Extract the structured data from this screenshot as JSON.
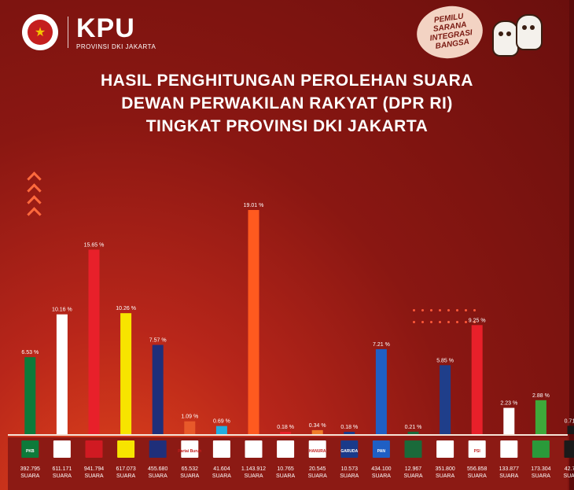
{
  "header": {
    "org": "KPU",
    "sub": "PROVINSI DKI JAKARTA",
    "seal_top": "KOMISI",
    "seal_bottom": "PEMILIHAN UMUM",
    "pemilu_line1": "PEMILU",
    "pemilu_line2": "SARANA",
    "pemilu_line3": "INTEGRASI",
    "pemilu_line4": "BANGSA"
  },
  "chart_data": {
    "type": "bar",
    "title_lines": [
      "HASIL PENGHITUNGAN PEROLEHAN SUARA",
      "DEWAN PERWAKILAN RAKYAT  (DPR RI)",
      "TINGKAT PROVINSI DKI JAKARTA"
    ],
    "unit": "SUARA",
    "categories": [
      "PKB",
      "Gerindra",
      "PDI-P",
      "Golkar",
      "NasDem",
      "Partai Buruh",
      "Gelora",
      "PKS",
      "PKN",
      "Hanura",
      "Garuda",
      "PAN",
      "PBB",
      "Demokrat",
      "PSI",
      "Perindo",
      "PPP",
      "Ummat"
    ],
    "percent_labels": [
      "6.53 %",
      "10.16 %",
      "15.65 %",
      "10.26 %",
      "7.57 %",
      "1.09 %",
      "0.69 %",
      "19.01 %",
      "0.18 %",
      "0.34 %",
      "0.18 %",
      "7.21 %",
      "0.21 %",
      "5.85 %",
      "9.25 %",
      "2.23 %",
      "2.88 %",
      "0.71 %"
    ],
    "values": [
      6.53,
      10.16,
      15.65,
      10.26,
      7.57,
      1.09,
      0.69,
      19.01,
      0.18,
      0.34,
      0.18,
      7.21,
      0.21,
      5.85,
      9.25,
      2.23,
      2.88,
      0.71
    ],
    "votes": [
      "392.795",
      "611.171",
      "941.794",
      "617.073",
      "455.680",
      "65.532",
      "41.604",
      "1.143.912",
      "10.765",
      "20.545",
      "10.573",
      "434.100",
      "12.967",
      "351.800",
      "556.858",
      "133.877",
      "173.304",
      "42.797"
    ],
    "logo_text": [
      "PKB",
      "",
      "",
      "",
      "",
      "Partai Buruh",
      "",
      "",
      "",
      "HANURA",
      "GARUDA",
      "PAN",
      "",
      "",
      "PSI",
      "",
      "",
      ""
    ],
    "colors": [
      "#0d7a3a",
      "#ffffff",
      "#e8202a",
      "#f7e400",
      "#1f2f7a",
      "#e8592a",
      "#22aee0",
      "#ff5a1f",
      "#e8202a",
      "#f07d2a",
      "#1a3a8a",
      "#1f5fc4",
      "#1a6a3a",
      "#1f3e8a",
      "#e8202a",
      "#ffffff",
      "#3ea83a",
      "#1a1a1a"
    ],
    "logo_bg": [
      "#0d7a3a",
      "#ffffff",
      "#d01a22",
      "#f7e400",
      "#1f2f7a",
      "#ffffff",
      "#ffffff",
      "#ffffff",
      "#ffffff",
      "#ffffff",
      "#1a3a8a",
      "#1f5fc4",
      "#1a6a3a",
      "#ffffff",
      "#ffffff",
      "#ffffff",
      "#2a9a3a",
      "#1a1a1a"
    ],
    "ylim": [
      0,
      19.01
    ]
  }
}
